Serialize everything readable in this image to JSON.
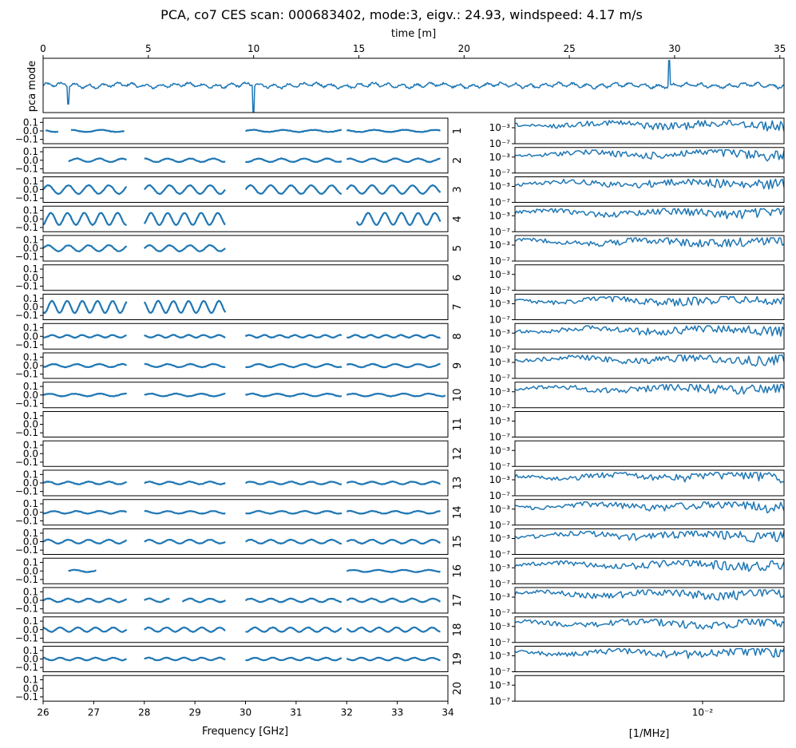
{
  "chart_data": {
    "type": "line",
    "title": "PCA, co7 CES scan: 000683402, mode:3, eigv.: 24.93, windspeed: 4.17 m/s",
    "top_panel": {
      "xlabel": "time [m]",
      "ylabel": "pca mode",
      "xlim": [
        0,
        35.2
      ],
      "xticks": [
        "0",
        "5",
        "10",
        "15",
        "20",
        "25",
        "30",
        "35"
      ],
      "xtick_values": [
        0,
        5,
        10,
        15,
        20,
        25,
        30,
        35
      ],
      "spikes": [
        {
          "x": 1.2,
          "y": -0.9
        },
        {
          "x": 10.0,
          "y": -1.3
        },
        {
          "x": 29.75,
          "y": 1.2
        }
      ]
    },
    "left_panels": {
      "xlabel": "Frequency [GHz]",
      "xlim": [
        26,
        34
      ],
      "xticks": [
        "26",
        "27",
        "28",
        "29",
        "30",
        "31",
        "32",
        "33",
        "34"
      ],
      "xtick_values": [
        26,
        27,
        28,
        29,
        30,
        31,
        32,
        33,
        34
      ],
      "ylim": [
        -0.15,
        0.15
      ],
      "yticks": [
        "0.1",
        "0.0",
        "−0.1"
      ],
      "ytick_values": [
        0.1,
        0.0,
        -0.1
      ]
    },
    "right_panels": {
      "xlabel": "[1/MHz]",
      "xscale": "log",
      "xticks": [
        "10⁻²"
      ],
      "yscale": "log",
      "yticks": [
        "10⁻³",
        "10⁻⁷"
      ]
    },
    "feeds": [
      {
        "label": "1",
        "segments": [
          [
            26.05,
            26.3
          ],
          [
            26.55,
            27.6
          ],
          [
            30.0,
            31.9
          ],
          [
            32.0,
            33.85
          ]
        ],
        "amp": 0.012,
        "period": 0.6,
        "spectrum": true
      },
      {
        "label": "2",
        "segments": [
          [
            26.5,
            27.65
          ],
          [
            28.0,
            29.6
          ],
          [
            30.0,
            31.9
          ],
          [
            32.0,
            33.85
          ]
        ],
        "amp": 0.02,
        "period": 0.45,
        "spectrum": true
      },
      {
        "label": "3",
        "segments": [
          [
            26.0,
            27.65
          ],
          [
            28.0,
            29.6
          ],
          [
            30.0,
            31.9
          ],
          [
            32.0,
            33.85
          ]
        ],
        "amp": 0.05,
        "period": 0.4,
        "spectrum": true
      },
      {
        "label": "4",
        "segments": [
          [
            26.0,
            27.65
          ],
          [
            28.0,
            29.6
          ],
          [
            32.2,
            33.85
          ]
        ],
        "amp": 0.07,
        "period": 0.33,
        "spectrum": true
      },
      {
        "label": "5",
        "segments": [
          [
            26.0,
            27.65
          ],
          [
            28.0,
            29.6
          ]
        ],
        "amp": 0.035,
        "period": 0.4,
        "spectrum": true
      },
      {
        "label": "6",
        "segments": [],
        "amp": 0,
        "period": 1,
        "spectrum": false
      },
      {
        "label": "7",
        "segments": [
          [
            26.0,
            27.65
          ],
          [
            28.0,
            29.6
          ]
        ],
        "amp": 0.07,
        "period": 0.3,
        "spectrum": true
      },
      {
        "label": "8",
        "segments": [
          [
            26.0,
            27.65
          ],
          [
            28.0,
            29.6
          ],
          [
            30.0,
            31.9
          ],
          [
            32.0,
            33.85
          ]
        ],
        "amp": 0.015,
        "period": 0.3,
        "spectrum": true
      },
      {
        "label": "9",
        "segments": [
          [
            26.0,
            27.65
          ],
          [
            28.0,
            29.6
          ],
          [
            30.0,
            31.9
          ],
          [
            32.0,
            33.85
          ]
        ],
        "amp": 0.018,
        "period": 0.45,
        "spectrum": true
      },
      {
        "label": "10",
        "segments": [
          [
            26.0,
            27.65
          ],
          [
            28.0,
            29.6
          ],
          [
            30.0,
            31.9
          ],
          [
            32.0,
            33.95
          ]
        ],
        "amp": 0.015,
        "period": 0.5,
        "spectrum": true
      },
      {
        "label": "11",
        "segments": [],
        "amp": 0,
        "period": 1,
        "spectrum": false
      },
      {
        "label": "12",
        "segments": [],
        "amp": 0,
        "period": 1,
        "spectrum": false
      },
      {
        "label": "13",
        "segments": [
          [
            26.0,
            27.65
          ],
          [
            28.0,
            29.6
          ],
          [
            30.0,
            31.9
          ],
          [
            32.0,
            33.85
          ]
        ],
        "amp": 0.015,
        "period": 0.4,
        "spectrum": true
      },
      {
        "label": "14",
        "segments": [
          [
            26.0,
            27.65
          ],
          [
            28.0,
            29.6
          ],
          [
            30.0,
            31.9
          ],
          [
            32.0,
            33.85
          ]
        ],
        "amp": 0.015,
        "period": 0.45,
        "spectrum": true
      },
      {
        "label": "15",
        "segments": [
          [
            26.0,
            27.65
          ],
          [
            28.0,
            29.6
          ],
          [
            30.0,
            31.9
          ],
          [
            32.0,
            33.85
          ]
        ],
        "amp": 0.022,
        "period": 0.4,
        "spectrum": true
      },
      {
        "label": "16",
        "segments": [
          [
            26.5,
            27.05
          ],
          [
            32.0,
            33.85
          ]
        ],
        "amp": 0.012,
        "period": 0.5,
        "spectrum": true
      },
      {
        "label": "17",
        "segments": [
          [
            26.0,
            27.65
          ],
          [
            28.0,
            28.5
          ],
          [
            28.75,
            29.6
          ],
          [
            30.0,
            31.9
          ],
          [
            32.0,
            33.85
          ]
        ],
        "amp": 0.02,
        "period": 0.4,
        "spectrum": true
      },
      {
        "label": "18",
        "segments": [
          [
            26.0,
            27.65
          ],
          [
            28.0,
            29.6
          ],
          [
            30.0,
            31.9
          ],
          [
            32.0,
            33.85
          ]
        ],
        "amp": 0.025,
        "period": 0.35,
        "spectrum": true
      },
      {
        "label": "19",
        "segments": [
          [
            26.0,
            27.65
          ],
          [
            28.0,
            29.6
          ],
          [
            30.0,
            31.9
          ],
          [
            32.0,
            33.85
          ]
        ],
        "amp": 0.015,
        "period": 0.35,
        "spectrum": true
      },
      {
        "label": "20",
        "segments": [],
        "amp": 0,
        "period": 1,
        "spectrum": false
      }
    ]
  }
}
